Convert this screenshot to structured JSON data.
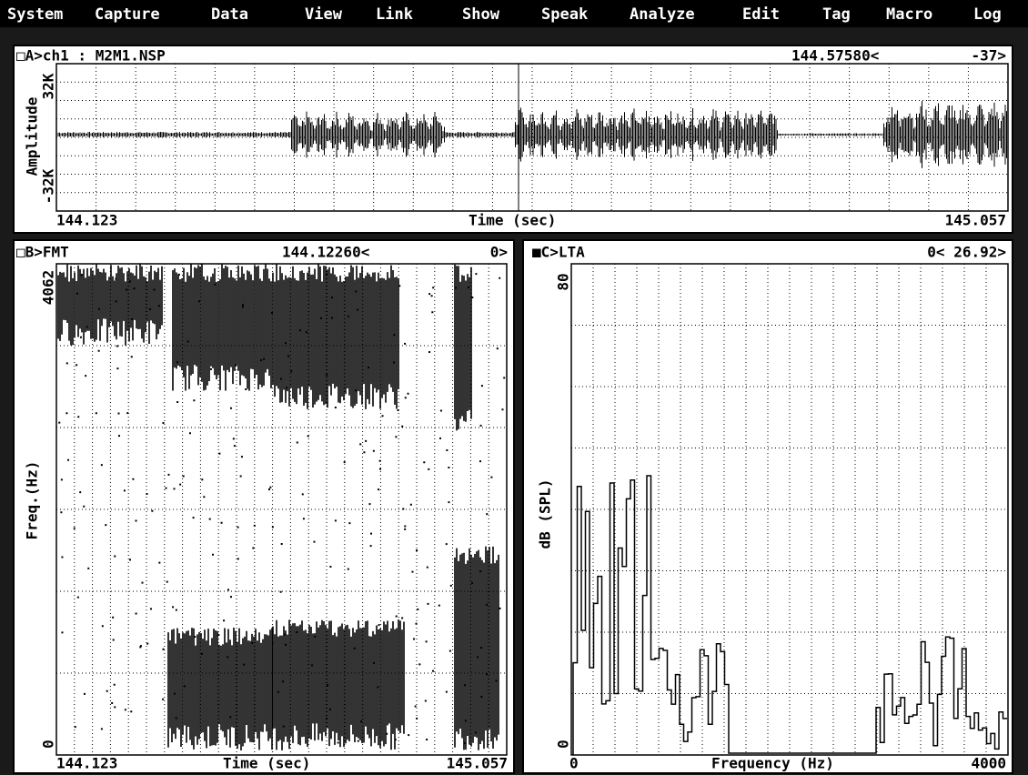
{
  "menu": [
    "System",
    "Capture",
    "Data",
    "View",
    "Link",
    "Show",
    "Speak",
    "Analyze",
    "Edit",
    "Tag",
    "Macro",
    "Log"
  ],
  "panel_a": {
    "title": "□A>ch1 : M2M1.NSP",
    "cursor": "144.57580<",
    "value": "-37>",
    "y_label": "Amplitude",
    "y_top": "32K",
    "y_bottom": "-32K",
    "x_start": "144.123",
    "x_label": "Time (sec)",
    "x_end": "145.057"
  },
  "panel_b": {
    "title": "□B>FMT",
    "cursor": "144.12260<",
    "value": "0>",
    "y_label": "Freq.(Hz)",
    "y_top": "4062",
    "y_bottom": "0",
    "x_start": "144.123",
    "x_label": "Time (sec)",
    "x_end": "145.057"
  },
  "panel_c": {
    "title": "■C>LTA",
    "cursor": "0< 26.92>",
    "y_label": "dB (SPL)",
    "y_top": "80",
    "y_bottom": "0",
    "x_start": "0",
    "x_label": "Frequency (Hz)",
    "x_end": "4000"
  }
}
